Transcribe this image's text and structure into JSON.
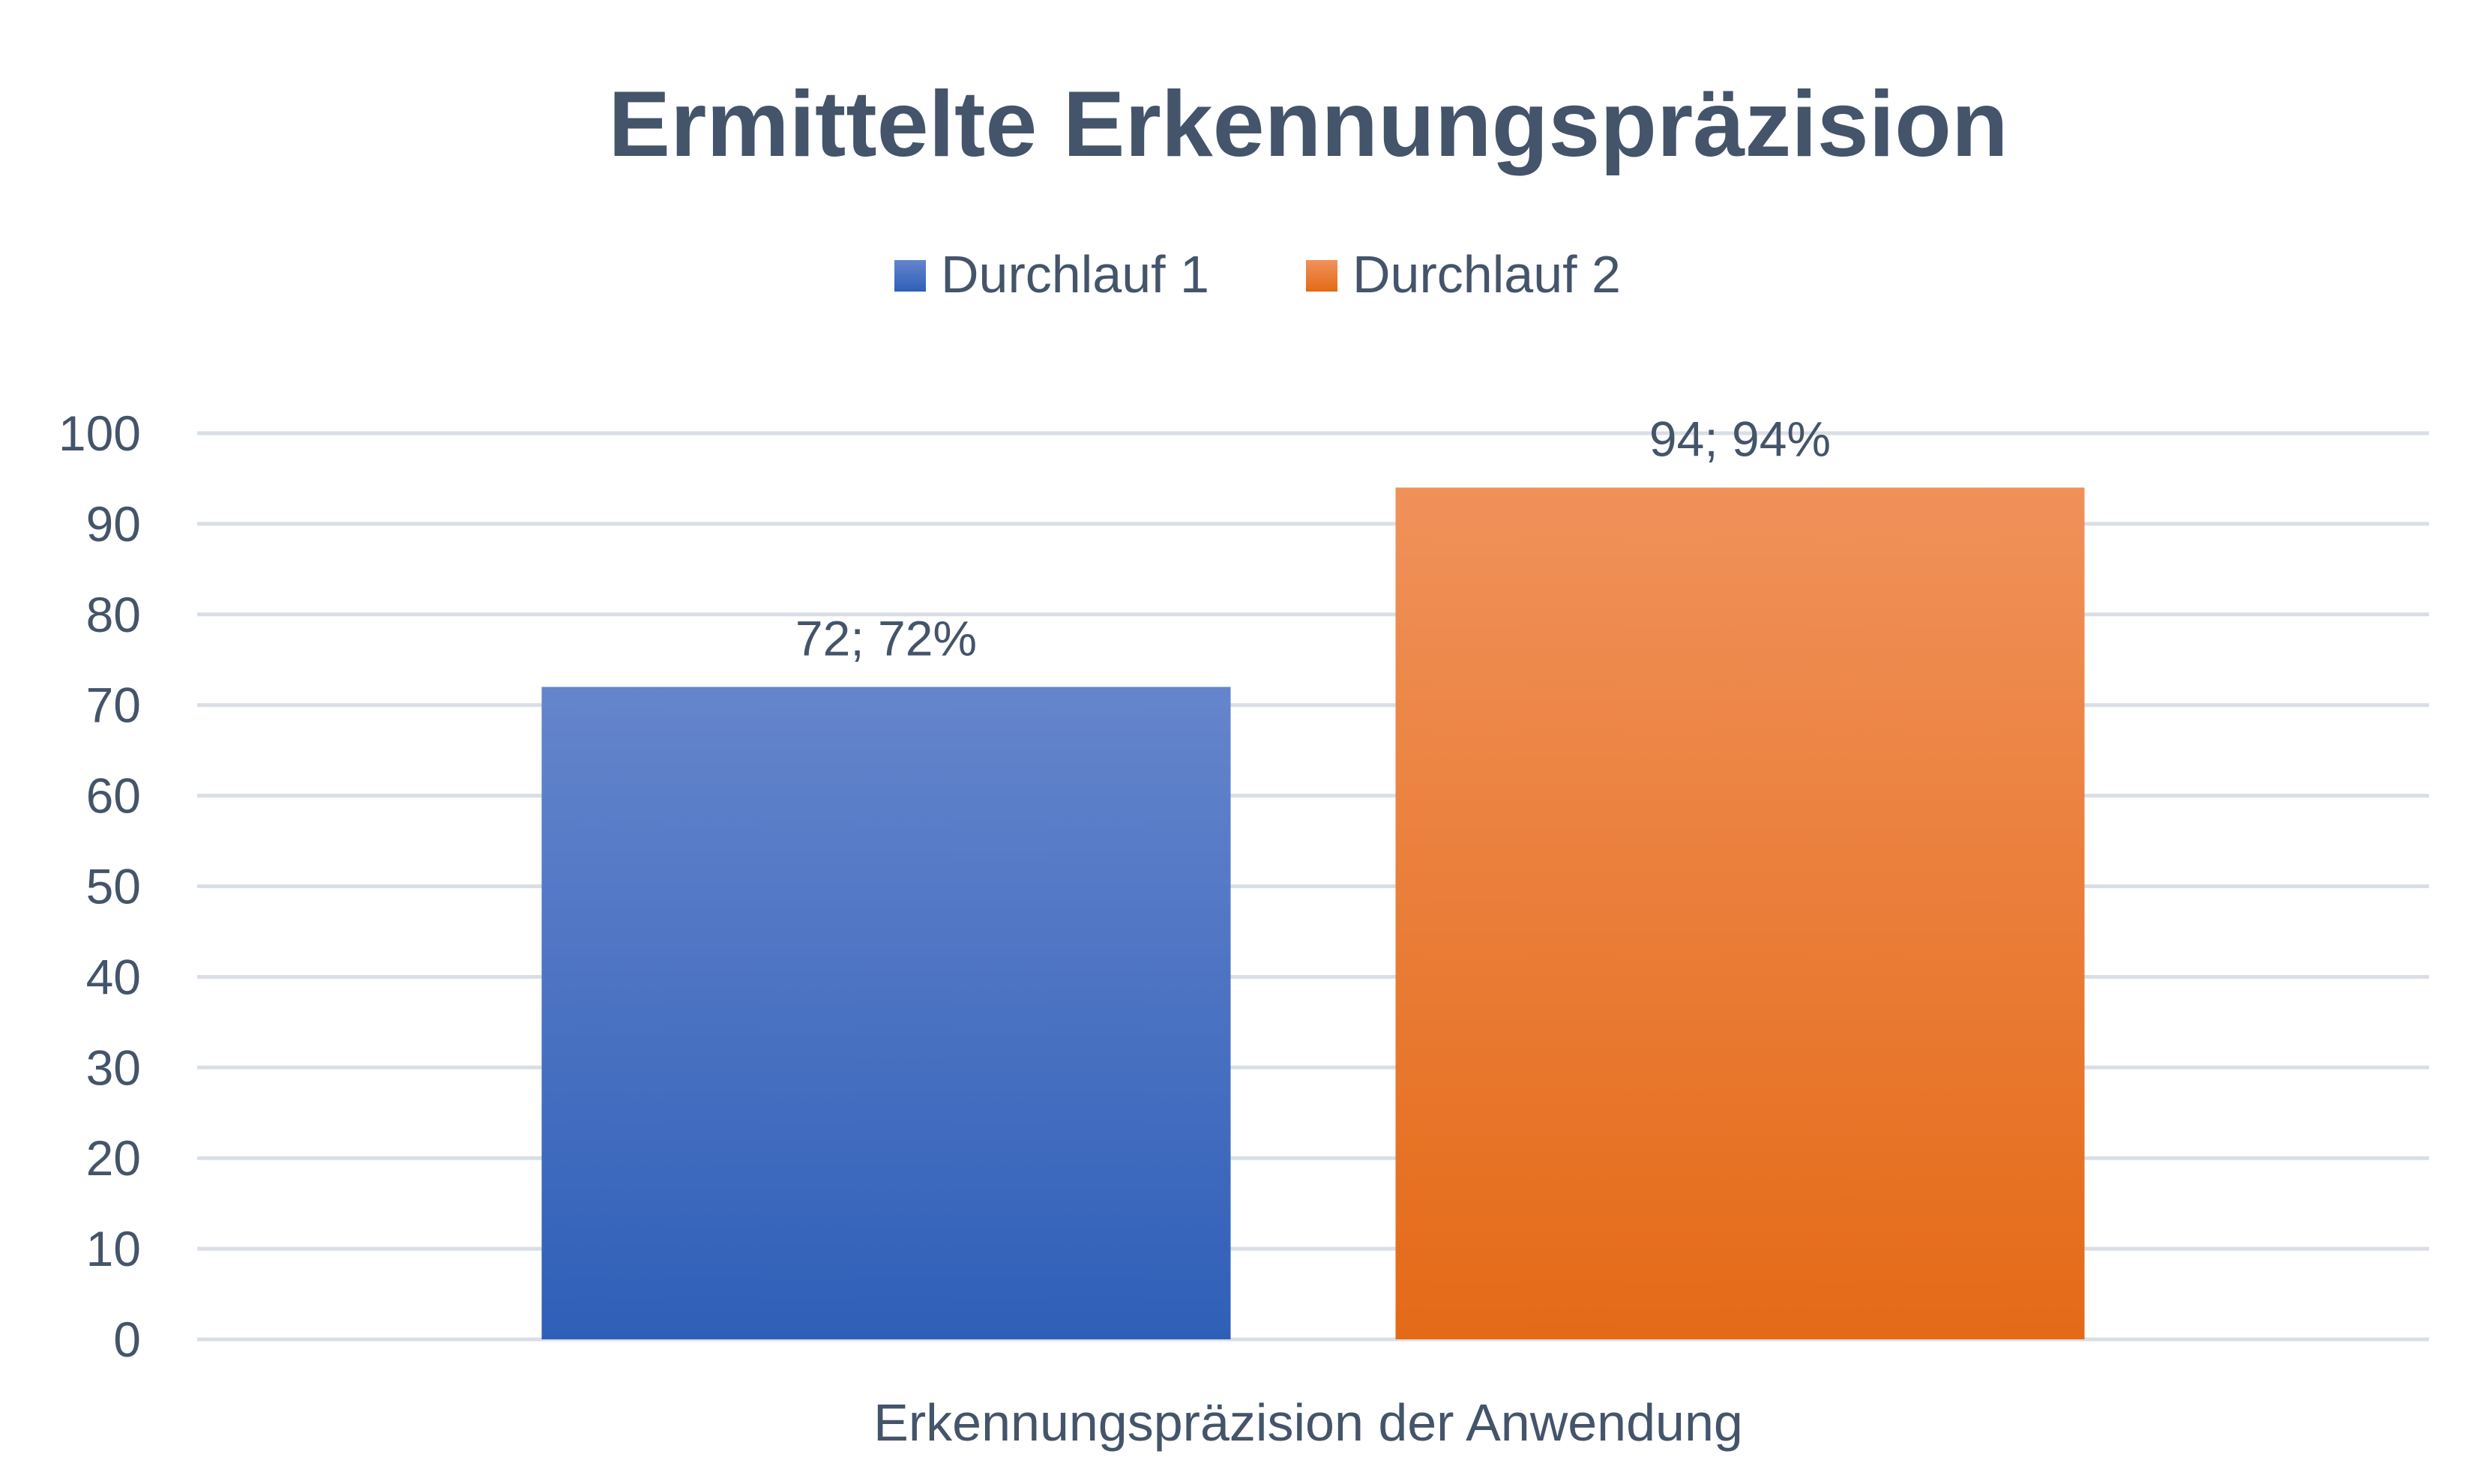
{
  "chart_data": {
    "type": "bar",
    "title": "Ermittelte Erkennungspräzision",
    "categories": [
      "Erkennungspräzision der Anwendung"
    ],
    "series": [
      {
        "name": "Durchlauf 1",
        "values": [
          72
        ],
        "data_label": "72; 72%",
        "color_top": "#6585CC",
        "color_bottom": "#2F5FB8"
      },
      {
        "name": "Durchlauf 2",
        "values": [
          94
        ],
        "data_label": "94; 94%",
        "color_top": "#F0915A",
        "color_bottom": "#E46A17"
      }
    ],
    "xlabel": "Erkennungspräzision der Anwendung",
    "ylabel": "",
    "ylim": [
      0,
      100
    ],
    "yticks": [
      "0",
      "10",
      "20",
      "30",
      "40",
      "50",
      "60",
      "70",
      "80",
      "90",
      "100"
    ],
    "grid": true,
    "legend_position": "top-center"
  }
}
